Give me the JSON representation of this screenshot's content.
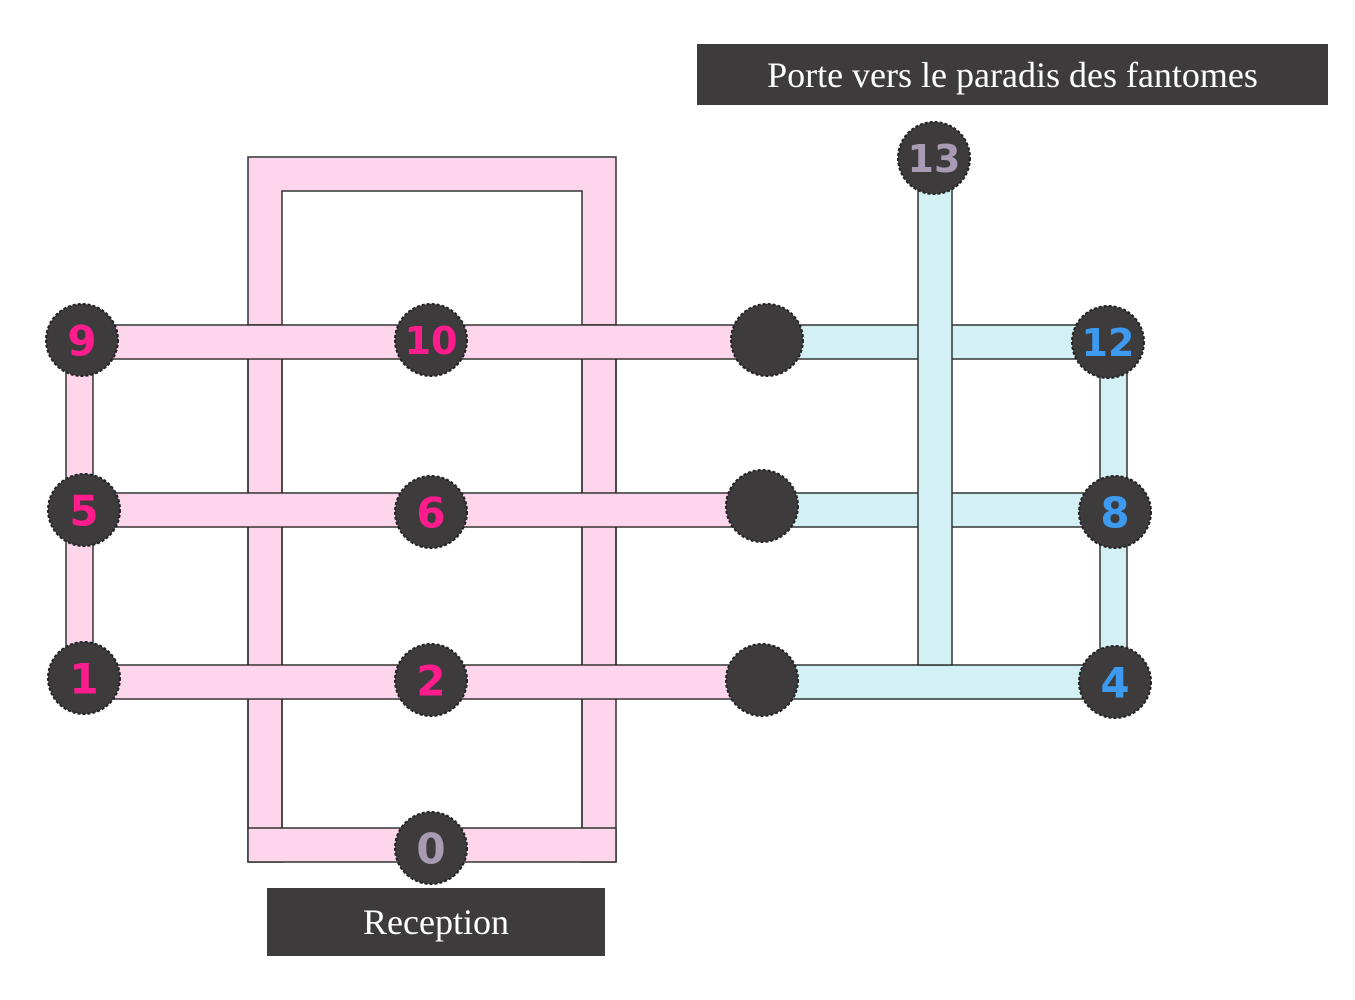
{
  "labels": {
    "top": "Porte vers le paradis des fantomes",
    "bottom": "Reception"
  },
  "colors": {
    "pink_corridor": "#fdd6ec",
    "cyan_corridor": "#d3f1f4",
    "node_fill": "#3d3b3c",
    "node_stroke": "#222222",
    "pink_number": "#ff1d8e",
    "blue_number": "#3d9aef",
    "grey_number": "#a99bb3",
    "label_bg": "#3d3b3c",
    "label_text": "#ffffff"
  },
  "nodes": [
    {
      "id": "node-9",
      "label": "9",
      "color": "pink"
    },
    {
      "id": "node-10",
      "label": "10",
      "color": "pink"
    },
    {
      "id": "node-5",
      "label": "5",
      "color": "pink"
    },
    {
      "id": "node-6",
      "label": "6",
      "color": "pink"
    },
    {
      "id": "node-1",
      "label": "1",
      "color": "pink"
    },
    {
      "id": "node-2",
      "label": "2",
      "color": "pink"
    },
    {
      "id": "node-0",
      "label": "0",
      "color": "grey"
    },
    {
      "id": "node-13",
      "label": "13",
      "color": "grey"
    },
    {
      "id": "node-12",
      "label": "12",
      "color": "blue"
    },
    {
      "id": "node-8",
      "label": "8",
      "color": "blue"
    },
    {
      "id": "node-4",
      "label": "4",
      "color": "blue"
    },
    {
      "id": "node-unlabeled-a",
      "label": "",
      "color": "none"
    },
    {
      "id": "node-unlabeled-b",
      "label": "",
      "color": "none"
    },
    {
      "id": "node-unlabeled-c",
      "label": "",
      "color": "none"
    }
  ]
}
